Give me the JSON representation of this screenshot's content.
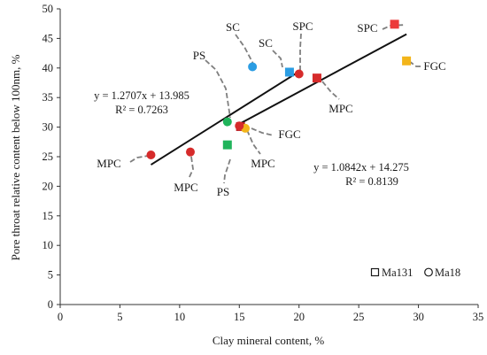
{
  "chart_data": {
    "type": "scatter",
    "title": "",
    "xlabel": "Clay mineral content, %",
    "ylabel": "Pore throat relative content below 100nm, %",
    "xlim": [
      0,
      35
    ],
    "ylim": [
      0,
      50
    ],
    "xticks": [
      0,
      5,
      10,
      15,
      20,
      25,
      30,
      35
    ],
    "yticks": [
      0,
      5,
      10,
      15,
      20,
      25,
      30,
      35,
      40,
      45,
      50
    ],
    "grid": false,
    "legend_position": "bottom-right",
    "series": [
      {
        "name": "Ma131",
        "marker": "square",
        "points": [
          {
            "x": 19.2,
            "y": 39.3,
            "label": "SC",
            "color": "#2b9de3"
          },
          {
            "x": 21.5,
            "y": 38.3,
            "label": "MPC",
            "color": "#d62b2b"
          },
          {
            "x": 28.0,
            "y": 47.4,
            "label": "SPC",
            "color": "#ec3b3b"
          },
          {
            "x": 29.0,
            "y": 41.2,
            "label": "FGC",
            "color": "#f3b51a"
          },
          {
            "x": 15.1,
            "y": 30.1,
            "label": "",
            "color": "#b92025"
          },
          {
            "x": 14.0,
            "y": 27.0,
            "label": "PS",
            "color": "#20b45b"
          }
        ]
      },
      {
        "name": "Ma18",
        "marker": "circle",
        "points": [
          {
            "x": 7.6,
            "y": 25.3,
            "label": "MPC",
            "color": "#d62b2b"
          },
          {
            "x": 10.9,
            "y": 25.8,
            "label": "MPC",
            "color": "#d62b2b"
          },
          {
            "x": 14.0,
            "y": 30.9,
            "label": "PS",
            "color": "#20b45b"
          },
          {
            "x": 16.1,
            "y": 40.2,
            "label": "SC",
            "color": "#2b9de3"
          },
          {
            "x": 20.0,
            "y": 39.0,
            "label": "SPC",
            "color": "#d62b2b"
          },
          {
            "x": 15.5,
            "y": 29.8,
            "label": "FGC",
            "color": "#f3b51a"
          },
          {
            "x": 15.0,
            "y": 30.2,
            "label": "MPC",
            "color": "#d62b2b"
          }
        ]
      }
    ],
    "trendlines": [
      {
        "equation": "y = 1.2707x + 13.985",
        "r2": "R² = 0.7263",
        "slope": 1.2707,
        "intercept": 13.985,
        "x_range": [
          7.6,
          20.0
        ]
      },
      {
        "equation": "y = 1.0842x + 14.275",
        "r2": "R² = 0.8139",
        "slope": 1.0842,
        "intercept": 14.275,
        "x_range": [
          15.0,
          29.0
        ]
      }
    ]
  }
}
